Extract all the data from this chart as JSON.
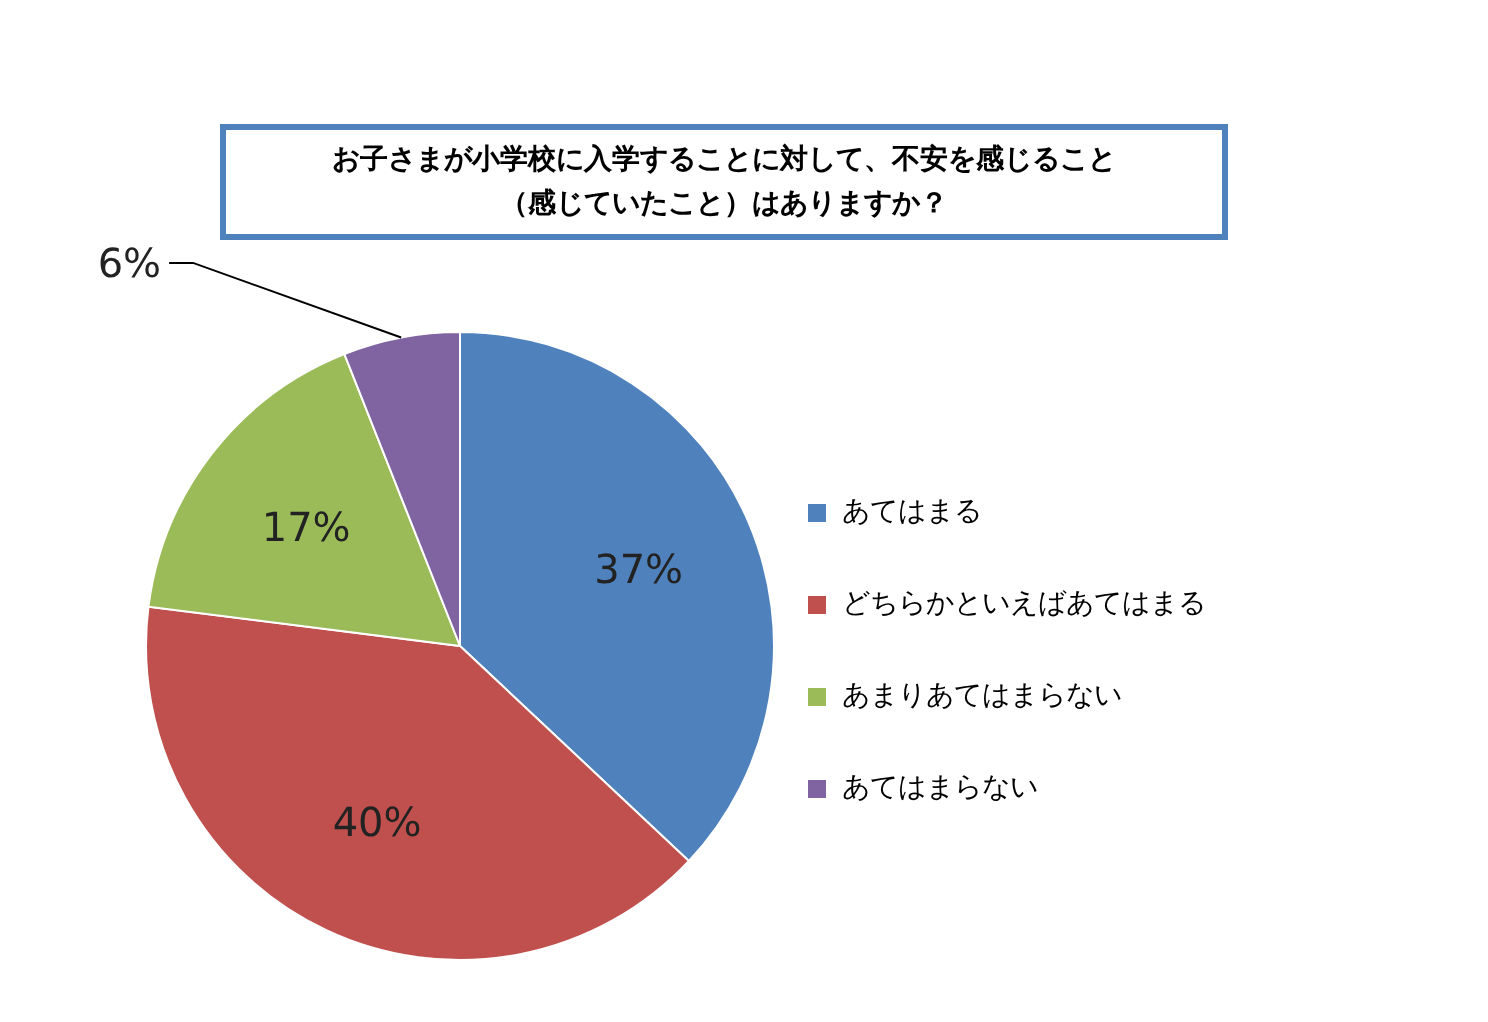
{
  "chart_data": {
    "type": "pie",
    "title": "お子さまが小学校に入学することに対して、不安を感じること（感じていたこと）はありますか？",
    "categories": [
      "あてはまる",
      "どちらかといえばあてはまる",
      "あまりあてはまらない",
      "あてはまらない"
    ],
    "values": [
      37,
      40,
      17,
      6
    ],
    "colors": [
      "#4f81bd",
      "#c0504d",
      "#9bbb59",
      "#8064a2"
    ],
    "value_labels": [
      "37%",
      "40%",
      "17%",
      "6%"
    ],
    "legend": "right"
  }
}
